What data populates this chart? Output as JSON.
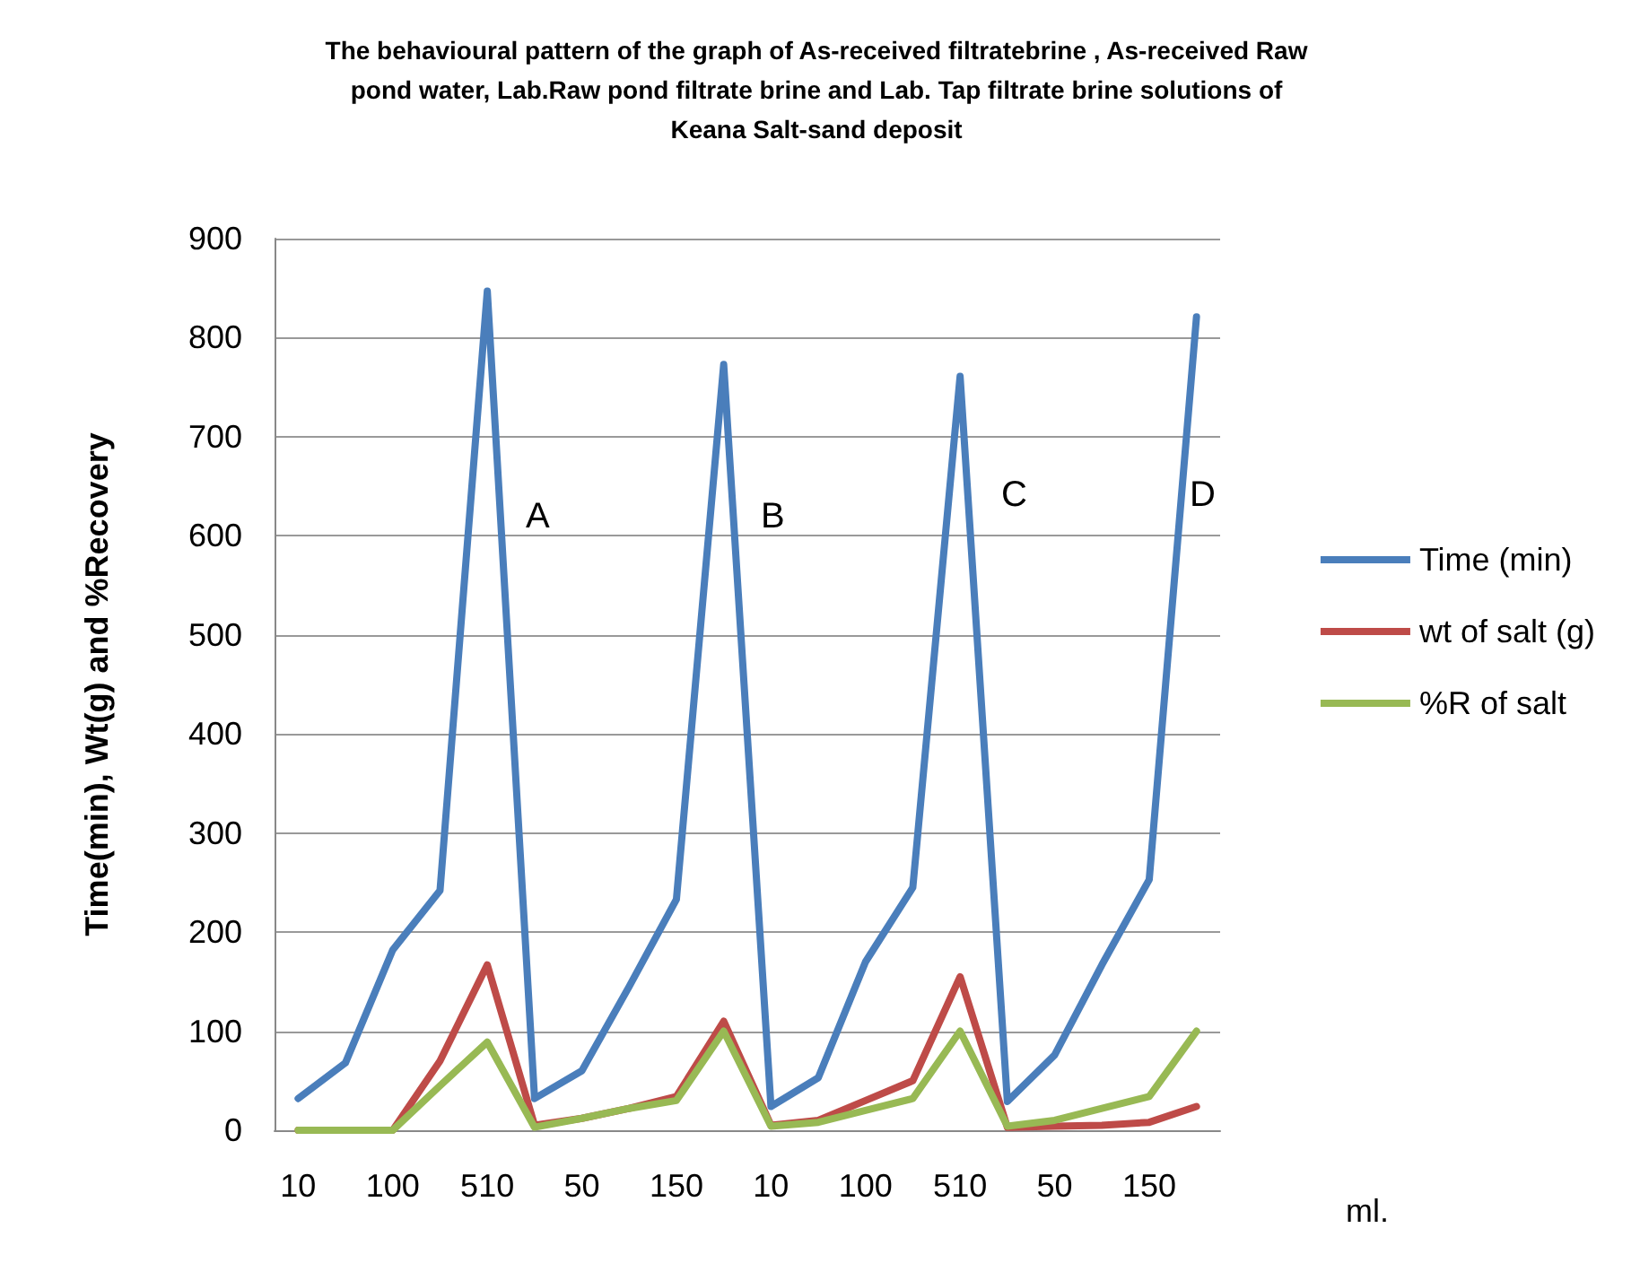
{
  "chart_data": {
    "type": "line",
    "title": "The behavioural pattern of the graph of As-received filtratebrine , As-received Raw\npond water, Lab.Raw pond filtrate brine and Lab. Tap filtrate brine solutions of\nKeana Salt-sand deposit",
    "ylabel": "Time(min), Wt(g) and %Recovery",
    "xlabel": "ml.",
    "categories": [
      "10",
      null,
      "100",
      null,
      "510",
      null,
      "50",
      null,
      "150",
      null,
      "10",
      null,
      "100",
      null,
      "510",
      null,
      "50",
      null,
      "150",
      null
    ],
    "series": [
      {
        "name": "Time (min)",
        "color": "#4a7ebb",
        "values": [
          32,
          68,
          182,
          242,
          847,
          32,
          60,
          145,
          233,
          773,
          24,
          53,
          170,
          245,
          761,
          29,
          76,
          167,
          253,
          821
        ]
      },
      {
        "name": "wt of salt (g)",
        "color": "#be4b48",
        "values": [
          0,
          0,
          0,
          70,
          167,
          5,
          12,
          22,
          34,
          110,
          5,
          10,
          30,
          50,
          155,
          3,
          4,
          5,
          8,
          24
        ]
      },
      {
        "name": "%R of salt",
        "color": "#98b954",
        "values": [
          0,
          0,
          0,
          45,
          89,
          3,
          12,
          22,
          30,
          100,
          4,
          8,
          20,
          32,
          100,
          4,
          10,
          22,
          34,
          100
        ]
      }
    ],
    "ylim": [
      0,
      900
    ],
    "yticks": [
      0,
      100,
      200,
      300,
      400,
      500,
      600,
      700,
      800,
      900
    ],
    "grid": "y",
    "legend": "right",
    "marker": "none",
    "line_style": "solid",
    "annotations": [
      "A",
      "B",
      "C",
      "D"
    ]
  }
}
